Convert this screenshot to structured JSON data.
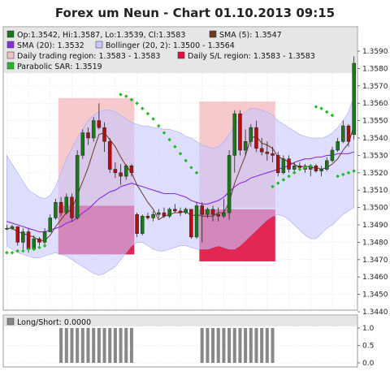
{
  "chart_data": {
    "type": "candlestick",
    "title": "Forex um Neun - Chart 01.10.2013 09:15",
    "panels": [
      {
        "name": "price",
        "ylim": [
          1.344,
          1.359
        ],
        "yticks": [
          "1.3590",
          "1.3580",
          "1.3570",
          "1.3560",
          "1.3550",
          "1.3540",
          "1.3530",
          "1.3520",
          "1.3510",
          "1.3500",
          "1.3490",
          "1.3480",
          "1.3470",
          "1.3460",
          "1.3450",
          "1.3440"
        ],
        "grid": true,
        "legend": {
          "placement": "top",
          "entries": [
            {
              "label": "Op:1.3542, Hi:1.3587, Lo:1.3539, Cl:1.3583",
              "color": "#1a7a1a"
            },
            {
              "label": "SMA (5): 1.3547",
              "color": "#6b3a1f"
            },
            {
              "label": "SMA (20): 1.3532",
              "color": "#8b2be2"
            },
            {
              "label": "Bollinger (20, 2): 1.3500 - 1.3564",
              "color": "#c8c8ff"
            },
            {
              "label": "Daily trading region: 1.3583 - 1.3583",
              "color": "#f4c0c4"
            },
            {
              "label": "Daily S/L region: 1.3583 - 1.3583",
              "color": "#e01040"
            },
            {
              "label": "Parabolic SAR: 1.3519",
              "color": "#22bb22"
            }
          ]
        },
        "candles": [
          {
            "o": 1.3488,
            "h": 1.349,
            "l": 1.3487,
            "c": 1.3488
          },
          {
            "o": 1.3488,
            "h": 1.349,
            "l": 1.3487,
            "c": 1.3489
          },
          {
            "o": 1.3489,
            "h": 1.3489,
            "l": 1.3478,
            "c": 1.348
          },
          {
            "o": 1.348,
            "h": 1.3488,
            "l": 1.3476,
            "c": 1.3486
          },
          {
            "o": 1.3486,
            "h": 1.3488,
            "l": 1.3474,
            "c": 1.3476
          },
          {
            "o": 1.3476,
            "h": 1.3484,
            "l": 1.3475,
            "c": 1.3482
          },
          {
            "o": 1.3482,
            "h": 1.3483,
            "l": 1.3478,
            "c": 1.348
          },
          {
            "o": 1.348,
            "h": 1.3488,
            "l": 1.3479,
            "c": 1.3486
          },
          {
            "o": 1.3486,
            "h": 1.3496,
            "l": 1.3486,
            "c": 1.3494
          },
          {
            "o": 1.3494,
            "h": 1.3505,
            "l": 1.3493,
            "c": 1.3503
          },
          {
            "o": 1.3503,
            "h": 1.3506,
            "l": 1.3495,
            "c": 1.3497
          },
          {
            "o": 1.3497,
            "h": 1.3508,
            "l": 1.3496,
            "c": 1.3506
          },
          {
            "o": 1.3506,
            "h": 1.3508,
            "l": 1.3492,
            "c": 1.3494
          },
          {
            "o": 1.3494,
            "h": 1.3533,
            "l": 1.3493,
            "c": 1.353
          },
          {
            "o": 1.353,
            "h": 1.3545,
            "l": 1.3528,
            "c": 1.3543
          },
          {
            "o": 1.3543,
            "h": 1.3546,
            "l": 1.3536,
            "c": 1.354
          },
          {
            "o": 1.354,
            "h": 1.3552,
            "l": 1.3538,
            "c": 1.355
          },
          {
            "o": 1.355,
            "h": 1.356,
            "l": 1.3545,
            "c": 1.3546
          },
          {
            "o": 1.3546,
            "h": 1.3549,
            "l": 1.3532,
            "c": 1.3538
          },
          {
            "o": 1.3538,
            "h": 1.354,
            "l": 1.352,
            "c": 1.3522
          },
          {
            "o": 1.3522,
            "h": 1.3526,
            "l": 1.3517,
            "c": 1.352
          },
          {
            "o": 1.352,
            "h": 1.3525,
            "l": 1.3513,
            "c": 1.3518
          },
          {
            "o": 1.3518,
            "h": 1.3525,
            "l": 1.3516,
            "c": 1.3524
          },
          {
            "o": 1.3524,
            "h": 1.3525,
            "l": 1.3518,
            "c": 1.352
          },
          {
            "o": 1.3496,
            "h": 1.3497,
            "l": 1.3483,
            "c": 1.3485
          },
          {
            "o": 1.3485,
            "h": 1.3496,
            "l": 1.3484,
            "c": 1.3495
          },
          {
            "o": 1.3495,
            "h": 1.3497,
            "l": 1.3493,
            "c": 1.3494
          },
          {
            "o": 1.3494,
            "h": 1.3498,
            "l": 1.3492,
            "c": 1.3496
          },
          {
            "o": 1.3496,
            "h": 1.3499,
            "l": 1.3494,
            "c": 1.3497
          },
          {
            "o": 1.3497,
            "h": 1.35,
            "l": 1.3494,
            "c": 1.3495
          },
          {
            "o": 1.3495,
            "h": 1.35,
            "l": 1.3494,
            "c": 1.3499
          },
          {
            "o": 1.3499,
            "h": 1.3502,
            "l": 1.3497,
            "c": 1.3498
          },
          {
            "o": 1.3498,
            "h": 1.35,
            "l": 1.3495,
            "c": 1.3497
          },
          {
            "o": 1.3497,
            "h": 1.35,
            "l": 1.3496,
            "c": 1.3499
          },
          {
            "o": 1.3499,
            "h": 1.3499,
            "l": 1.3482,
            "c": 1.3483
          },
          {
            "o": 1.3483,
            "h": 1.3503,
            "l": 1.3482,
            "c": 1.3501
          },
          {
            "o": 1.3501,
            "h": 1.3503,
            "l": 1.348,
            "c": 1.3496
          },
          {
            "o": 1.3496,
            "h": 1.35,
            "l": 1.3494,
            "c": 1.3499
          },
          {
            "o": 1.3499,
            "h": 1.3501,
            "l": 1.3492,
            "c": 1.3496
          },
          {
            "o": 1.3496,
            "h": 1.35,
            "l": 1.3492,
            "c": 1.3495
          },
          {
            "o": 1.3495,
            "h": 1.3505,
            "l": 1.3494,
            "c": 1.3497
          },
          {
            "o": 1.3497,
            "h": 1.3533,
            "l": 1.3493,
            "c": 1.353
          },
          {
            "o": 1.353,
            "h": 1.3556,
            "l": 1.352,
            "c": 1.3554
          },
          {
            "o": 1.3554,
            "h": 1.3556,
            "l": 1.353,
            "c": 1.3533
          },
          {
            "o": 1.3533,
            "h": 1.3545,
            "l": 1.353,
            "c": 1.3538
          },
          {
            "o": 1.3538,
            "h": 1.3548,
            "l": 1.3535,
            "c": 1.3546
          },
          {
            "o": 1.3546,
            "h": 1.355,
            "l": 1.3532,
            "c": 1.3534
          },
          {
            "o": 1.3534,
            "h": 1.354,
            "l": 1.353,
            "c": 1.3532
          },
          {
            "o": 1.3532,
            "h": 1.3538,
            "l": 1.3527,
            "c": 1.3531
          },
          {
            "o": 1.3531,
            "h": 1.3535,
            "l": 1.3526,
            "c": 1.353
          },
          {
            "o": 1.353,
            "h": 1.3532,
            "l": 1.3518,
            "c": 1.352
          },
          {
            "o": 1.352,
            "h": 1.353,
            "l": 1.3519,
            "c": 1.3528
          },
          {
            "o": 1.3528,
            "h": 1.353,
            "l": 1.352,
            "c": 1.3522
          },
          {
            "o": 1.3522,
            "h": 1.3526,
            "l": 1.352,
            "c": 1.3524
          },
          {
            "o": 1.3524,
            "h": 1.3526,
            "l": 1.3521,
            "c": 1.3523
          },
          {
            "o": 1.3523,
            "h": 1.3525,
            "l": 1.352,
            "c": 1.3522
          },
          {
            "o": 1.3522,
            "h": 1.3525,
            "l": 1.3518,
            "c": 1.3524
          },
          {
            "o": 1.3524,
            "h": 1.3525,
            "l": 1.352,
            "c": 1.3521
          },
          {
            "o": 1.3521,
            "h": 1.3524,
            "l": 1.3518,
            "c": 1.3522
          },
          {
            "o": 1.3522,
            "h": 1.3529,
            "l": 1.3521,
            "c": 1.3527
          },
          {
            "o": 1.3527,
            "h": 1.3535,
            "l": 1.3526,
            "c": 1.3533
          },
          {
            "o": 1.3533,
            "h": 1.354,
            "l": 1.3532,
            "c": 1.3538
          },
          {
            "o": 1.3538,
            "h": 1.355,
            "l": 1.3537,
            "c": 1.3547
          },
          {
            "o": 1.3547,
            "h": 1.3548,
            "l": 1.3535,
            "c": 1.3538
          },
          {
            "o": 1.3542,
            "h": 1.3587,
            "l": 1.3539,
            "c": 1.3583
          }
        ],
        "sma5": [
          1.3488,
          1.3488,
          1.3486,
          1.3485,
          1.3484,
          1.3483,
          1.3481,
          1.3481,
          1.3484,
          1.3489,
          1.3493,
          1.3497,
          1.3499,
          1.3507,
          1.3515,
          1.3523,
          1.3533,
          1.3542,
          1.3543,
          1.3539,
          1.3535,
          1.3529,
          1.3524,
          1.352,
          1.3513,
          1.3508,
          1.3503,
          1.3499,
          1.3493,
          1.3495,
          1.3496,
          1.3497,
          1.3497,
          1.3498,
          1.3495,
          1.3496,
          1.3495,
          1.3495,
          1.3495,
          1.3497,
          1.3497,
          1.3503,
          1.3514,
          1.3522,
          1.353,
          1.354,
          1.3541,
          1.3537,
          1.3536,
          1.3534,
          1.3529,
          1.3528,
          1.3526,
          1.3525,
          1.3523,
          1.3524,
          1.3523,
          1.3523,
          1.3522,
          1.3523,
          1.3525,
          1.3528,
          1.3533,
          1.3537,
          1.3547
        ],
        "sma20": [
          1.3492,
          1.3491,
          1.349,
          1.3489,
          1.3488,
          1.3487,
          1.3486,
          1.3486,
          1.3487,
          1.3488,
          1.3489,
          1.3491,
          1.3492,
          1.3494,
          1.3497,
          1.3499,
          1.3502,
          1.3505,
          1.3507,
          1.3509,
          1.351,
          1.3512,
          1.3513,
          1.3514,
          1.3513,
          1.3512,
          1.3511,
          1.351,
          1.3509,
          1.3508,
          1.3508,
          1.3508,
          1.3507,
          1.3506,
          1.3504,
          1.3503,
          1.3502,
          1.3502,
          1.3503,
          1.3504,
          1.3506,
          1.3509,
          1.3512,
          1.3514,
          1.3515,
          1.3517,
          1.3518,
          1.3519,
          1.352,
          1.3521,
          1.3522,
          1.3523,
          1.3524,
          1.3526,
          1.3527,
          1.3528,
          1.3528,
          1.3529,
          1.3529,
          1.353,
          1.353,
          1.3531,
          1.3531,
          1.3531,
          1.3532
        ],
        "boll_upper": [
          1.353,
          1.3525,
          1.352,
          1.3515,
          1.351,
          1.3508,
          1.3506,
          1.3505,
          1.3507,
          1.3512,
          1.352,
          1.3528,
          1.3534,
          1.354,
          1.3545,
          1.355,
          1.3553,
          1.3555,
          1.3556,
          1.3556,
          1.3555,
          1.3553,
          1.3551,
          1.3549,
          1.3548,
          1.3547,
          1.3547,
          1.3546,
          1.3546,
          1.3545,
          1.3545,
          1.3544,
          1.3543,
          1.3541,
          1.354,
          1.3538,
          1.3536,
          1.3535,
          1.3534,
          1.3535,
          1.3538,
          1.3542,
          1.3547,
          1.3552,
          1.3555,
          1.3557,
          1.3557,
          1.3556,
          1.3555,
          1.3553,
          1.355,
          1.3548,
          1.3546,
          1.3544,
          1.3542,
          1.3541,
          1.354,
          1.354,
          1.354,
          1.3541,
          1.3543,
          1.3546,
          1.355,
          1.3555,
          1.3564
        ],
        "boll_lower": [
          1.3478,
          1.3476,
          1.3474,
          1.3473,
          1.3472,
          1.3471,
          1.3471,
          1.3472,
          1.3473,
          1.3474,
          1.3473,
          1.3472,
          1.347,
          1.3468,
          1.3466,
          1.3464,
          1.3462,
          1.3461,
          1.3462,
          1.3464,
          1.3466,
          1.347,
          1.3474,
          1.3478,
          1.348,
          1.348,
          1.3478,
          1.3476,
          1.3475,
          1.3475,
          1.3476,
          1.3477,
          1.3478,
          1.3478,
          1.3477,
          1.3476,
          1.3476,
          1.3476,
          1.3477,
          1.3478,
          1.3477,
          1.3476,
          1.3476,
          1.3478,
          1.3481,
          1.3484,
          1.3487,
          1.349,
          1.3493,
          1.3495,
          1.3496,
          1.3495,
          1.3493,
          1.349,
          1.3487,
          1.3484,
          1.3482,
          1.3482,
          1.3485,
          1.3488,
          1.349,
          1.3493,
          1.3496,
          1.3498,
          1.35
        ],
        "sar": [
          [
            0,
            1.3474
          ],
          [
            1,
            1.3474
          ],
          [
            2,
            1.3475
          ],
          [
            3,
            1.3475
          ],
          [
            4,
            1.3476
          ],
          [
            5,
            1.3476
          ],
          [
            6,
            1.3477
          ],
          [
            7,
            1.3478
          ],
          [
            21,
            1.3565
          ],
          [
            22,
            1.3564
          ],
          [
            23,
            1.3562
          ],
          [
            24,
            1.356
          ],
          [
            25,
            1.3557
          ],
          [
            26,
            1.3554
          ],
          [
            27,
            1.3551
          ],
          [
            28,
            1.3547
          ],
          [
            29,
            1.3543
          ],
          [
            30,
            1.3539
          ],
          [
            31,
            1.3535
          ],
          [
            32,
            1.3531
          ],
          [
            33,
            1.3527
          ],
          [
            34,
            1.3523
          ],
          [
            35,
            1.352
          ],
          [
            49,
            1.3512
          ],
          [
            50,
            1.3514
          ],
          [
            51,
            1.3516
          ],
          [
            52,
            1.3518
          ],
          [
            53,
            1.352
          ],
          [
            54,
            1.3522
          ],
          [
            55,
            1.3523
          ],
          [
            56,
            1.3524
          ],
          [
            57,
            1.3558
          ],
          [
            58,
            1.3557
          ],
          [
            59,
            1.3555
          ],
          [
            60,
            1.3553
          ],
          [
            61,
            1.3518
          ],
          [
            62,
            1.3519
          ],
          [
            63,
            1.352
          ],
          [
            64,
            1.3521
          ]
        ],
        "trading_regions": [
          {
            "start": 10,
            "end": 23,
            "low": 1.35,
            "high": 1.3563
          },
          {
            "start": 36,
            "end": 49,
            "low": 1.35,
            "high": 1.3561
          }
        ],
        "sl_regions": [
          {
            "start": 10,
            "end": 23,
            "low": 1.3473,
            "high": 1.3501
          },
          {
            "start": 36,
            "end": 49,
            "low": 1.3469,
            "high": 1.3499
          }
        ]
      },
      {
        "name": "long_short",
        "ylim": [
          0,
          1
        ],
        "yticks": [
          "1.0",
          "0.5",
          "0.0"
        ],
        "legend": {
          "entries": [
            {
              "label": "Long/Short: 0.0000",
              "color": "#888888"
            }
          ]
        },
        "values": [
          0,
          0,
          0,
          0,
          0,
          0,
          0,
          0,
          0,
          0,
          1,
          1,
          1,
          1,
          1,
          1,
          1,
          1,
          1,
          1,
          1,
          1,
          1,
          1,
          0,
          0,
          0,
          0,
          0,
          0,
          0,
          0,
          0,
          0,
          0,
          0,
          0,
          0,
          0,
          0,
          0,
          0,
          0,
          0,
          0,
          0,
          0,
          0,
          0,
          0,
          0,
          0,
          0,
          0,
          0,
          0,
          0,
          0,
          0,
          0,
          0,
          0,
          0,
          0,
          0
        ]
      }
    ],
    "colors": {
      "bull": "#1a7a1a",
      "bear": "#b01010",
      "sma5": "#6b3a1f",
      "sma20": "#8b2be2",
      "bollinger_fill": "#c8c8ff",
      "trading_region": "#f4c0c4",
      "sl_region": "#e01040",
      "sar": "#22bb22",
      "long_short_bar": "#888888"
    }
  }
}
